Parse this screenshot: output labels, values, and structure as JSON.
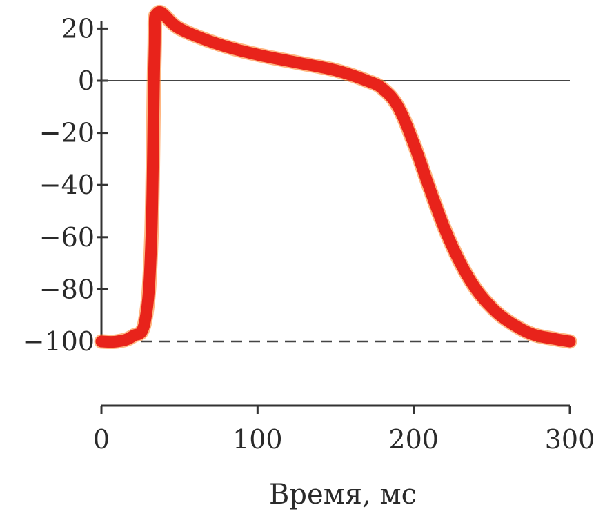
{
  "chart_data": {
    "type": "line",
    "title": "",
    "xlabel": "Время, мс",
    "ylabel": "",
    "xlim": [
      0,
      300
    ],
    "ylim": [
      -100,
      25
    ],
    "x_ticks": [
      "0",
      "100",
      "200",
      "300"
    ],
    "y_ticks": [
      "20",
      "0",
      "-20",
      "-40",
      "-60",
      "-80",
      "-100"
    ],
    "reference_lines": [
      {
        "y": 0,
        "style": "solid"
      },
      {
        "y": -100,
        "style": "dashed"
      }
    ],
    "grid": false,
    "series": [
      {
        "color": "#e8231b",
        "glow_color": "#ff7a1a",
        "x": [
          0,
          10,
          20,
          28,
          32,
          34,
          36,
          50,
          75,
          100,
          125,
          150,
          170,
          180,
          190,
          200,
          210,
          220,
          230,
          240,
          250,
          260,
          275,
          290,
          300
        ],
        "y": [
          -100,
          -100,
          -98,
          -92,
          -60,
          10,
          26,
          20,
          14,
          10,
          7,
          4,
          0,
          -3,
          -10,
          -24,
          -41,
          -57,
          -70,
          -80,
          -87,
          -92,
          -97,
          -99,
          -100
        ]
      }
    ]
  }
}
